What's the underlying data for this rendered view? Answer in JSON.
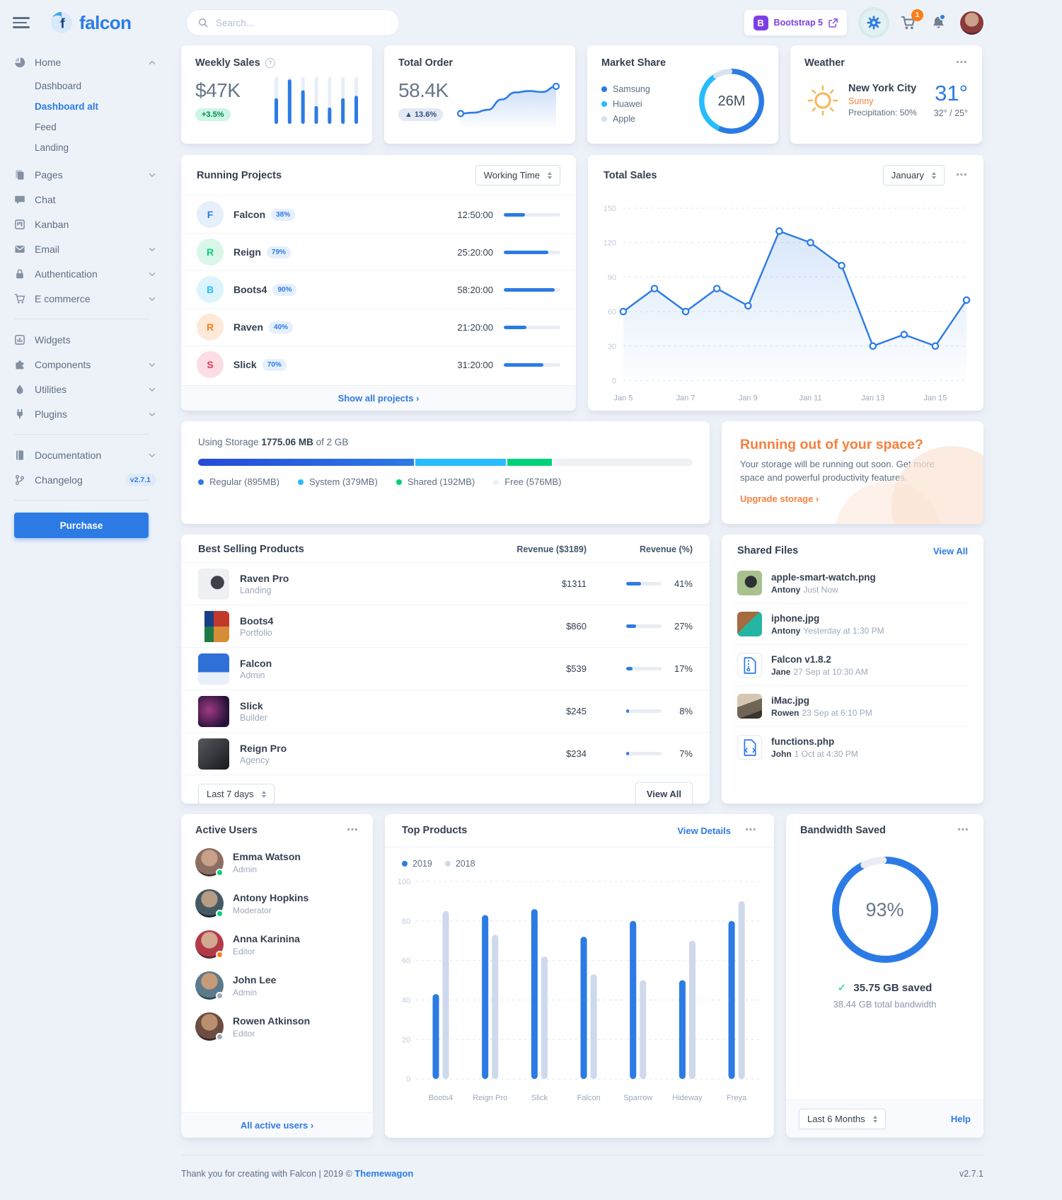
{
  "brand": "falcon",
  "icons": {
    "more": "⋯",
    "check": "✓",
    "help": "?",
    "bootstrap_initial": "B"
  },
  "navbar": {
    "search_placeholder": "Search...",
    "bootstrap_label": "Bootstrap 5",
    "cart_count": "1"
  },
  "sidebar": {
    "purchase_label": "Purchase",
    "sections": [
      {
        "items": [
          {
            "label": "Home",
            "icon": "pie",
            "caret": "up",
            "children": [
              {
                "label": "Dashboard",
                "active": false
              },
              {
                "label": "Dashboard alt",
                "active": true
              },
              {
                "label": "Feed",
                "active": false
              },
              {
                "label": "Landing",
                "active": false
              }
            ]
          },
          {
            "label": "Pages",
            "icon": "pages",
            "caret": "down"
          },
          {
            "label": "Chat",
            "icon": "chat"
          },
          {
            "label": "Kanban",
            "icon": "kanban"
          },
          {
            "label": "Email",
            "icon": "email",
            "caret": "down"
          },
          {
            "label": "Authentication",
            "icon": "lock",
            "caret": "down"
          },
          {
            "label": "E commerce",
            "icon": "cart",
            "caret": "down"
          }
        ]
      },
      {
        "items": [
          {
            "label": "Widgets",
            "icon": "widgets"
          },
          {
            "label": "Components",
            "icon": "puzzle",
            "caret": "down"
          },
          {
            "label": "Utilities",
            "icon": "drop",
            "caret": "down"
          },
          {
            "label": "Plugins",
            "icon": "plug",
            "caret": "down"
          }
        ]
      },
      {
        "items": [
          {
            "label": "Documentation",
            "icon": "book",
            "caret": "down"
          },
          {
            "label": "Changelog",
            "icon": "branch",
            "badge": "v2.7.1"
          }
        ]
      }
    ]
  },
  "cards": {
    "weekly_sales": {
      "title": "Weekly Sales",
      "value": "$47K",
      "badge": "+3.5%"
    },
    "total_order": {
      "title": "Total Order",
      "value": "58.4K",
      "badge": "▲ 13.6%"
    },
    "market_share": {
      "title": "Market Share",
      "center": "26M"
    },
    "weather": {
      "title": "Weather",
      "city": "New York City",
      "condition": "Sunny",
      "precipitation": "Precipitation: 50%",
      "temp": "31°",
      "range": "32° / 25°"
    }
  },
  "running_projects": {
    "title": "Running Projects",
    "filter": "Working Time",
    "footer": "Show all projects ›",
    "items": [
      {
        "initial": "F",
        "name": "Falcon",
        "percent": "38%",
        "time": "12:50:00",
        "progress": 38,
        "color": "#2c7be5",
        "bg": "#e6effc"
      },
      {
        "initial": "R",
        "name": "Reign",
        "percent": "79%",
        "time": "25:20:00",
        "progress": 79,
        "color": "#00d27a",
        "bg": "#d9f7e9"
      },
      {
        "initial": "B",
        "name": "Boots4",
        "percent": "90%",
        "time": "58:20:00",
        "progress": 90,
        "color": "#27bcfd",
        "bg": "#dcf4fe"
      },
      {
        "initial": "R",
        "name": "Raven",
        "percent": "40%",
        "time": "21:20:00",
        "progress": 40,
        "color": "#fd7e14",
        "bg": "#fee9d8"
      },
      {
        "initial": "S",
        "name": "Slick",
        "percent": "70%",
        "time": "31:20:00",
        "progress": 70,
        "color": "#e63757",
        "bg": "#fbdde3"
      }
    ]
  },
  "total_sales": {
    "title": "Total Sales",
    "filter": "January"
  },
  "storage": {
    "prefix": "Using Storage",
    "used": "1775.06 MB",
    "suffix": "of 2 GB",
    "segments": [
      {
        "label": "Regular (895MB)",
        "pct": 43.7,
        "color": "#2c7be5",
        "gradient": "linear-gradient(90deg,#2549d8,#2c7be5)"
      },
      {
        "label": "System (379MB)",
        "pct": 18.5,
        "color": "#27bcfd"
      },
      {
        "label": "Shared (192MB)",
        "pct": 9.4,
        "color": "#00d27a"
      },
      {
        "label": "Free (576MB)",
        "pct": 28.4,
        "color": "#eef2f6"
      }
    ]
  },
  "space": {
    "title": "Running out of your space?",
    "body": "Your storage will be running out soon. Get more space and powerful productivity features.",
    "link": "Upgrade storage ›"
  },
  "best_selling": {
    "title": "Best Selling Products",
    "col_revenue": "Revenue ($3189)",
    "col_percent": "Revenue (%)",
    "filter": "Last 7 days",
    "view_all": "View All",
    "items": [
      {
        "name": "Raven Pro",
        "category": "Landing",
        "revenue": "$1311",
        "percent": "41%",
        "pct": 41,
        "thumb": "th-raven"
      },
      {
        "name": "Boots4",
        "category": "Portfolio",
        "revenue": "$860",
        "percent": "27%",
        "pct": 27,
        "thumb": "th-boots4"
      },
      {
        "name": "Falcon",
        "category": "Admin",
        "revenue": "$539",
        "percent": "17%",
        "pct": 17,
        "thumb": "th-falcon"
      },
      {
        "name": "Slick",
        "category": "Builder",
        "revenue": "$245",
        "percent": "8%",
        "pct": 8,
        "thumb": "th-slick"
      },
      {
        "name": "Reign Pro",
        "category": "Agency",
        "revenue": "$234",
        "percent": "7%",
        "pct": 7,
        "thumb": "th-reign"
      }
    ]
  },
  "shared_files": {
    "title": "Shared Files",
    "view_all": "View All",
    "items": [
      {
        "name": "apple-smart-watch.png",
        "user": "Antony",
        "time": "Just Now",
        "thumb": "tf-watch",
        "icon": ""
      },
      {
        "name": "iphone.jpg",
        "user": "Antony",
        "time": "Yesterday at 1:30 PM",
        "thumb": "tf-iphone",
        "icon": ""
      },
      {
        "name": "Falcon v1.8.2",
        "user": "Jane",
        "time": "27 Sep at 10:30 AM",
        "thumb": "sf-file",
        "icon": "zip"
      },
      {
        "name": "iMac.jpg",
        "user": "Rowen",
        "time": "23 Sep at 6:10 PM",
        "thumb": "tf-imac",
        "icon": ""
      },
      {
        "name": "functions.php",
        "user": "John",
        "time": "1 Oct at 4:30 PM",
        "thumb": "sf-file",
        "icon": "php"
      }
    ]
  },
  "active_users": {
    "title": "Active Users",
    "footer": "All active users ›",
    "items": [
      {
        "name": "Emma Watson",
        "role": "Admin",
        "status": "#00d27a",
        "avatar": "av-g1"
      },
      {
        "name": "Antony Hopkins",
        "role": "Moderator",
        "status": "#00d27a",
        "avatar": "av-g2"
      },
      {
        "name": "Anna Karinina",
        "role": "Editor",
        "status": "#fd7e14",
        "avatar": "av-g3"
      },
      {
        "name": "John Lee",
        "role": "Admin",
        "status": "#9da9bb",
        "avatar": "av-g4"
      },
      {
        "name": "Rowen Atkinson",
        "role": "Editor",
        "status": "#9da9bb",
        "avatar": "av-g5"
      }
    ]
  },
  "top_products": {
    "title": "Top Products",
    "view_details": "View Details"
  },
  "bandwidth": {
    "title": "Bandwidth Saved",
    "saved": "35.75 GB saved",
    "total": "38.44 GB total bandwidth",
    "filter": "Last 6 Months",
    "help": "Help"
  },
  "footer": {
    "text": "Thank you for creating with Falcon | 2019 © ",
    "link": "Themewagon",
    "version": "v2.7.1"
  },
  "chart_data": [
    {
      "id": "weekly_sales_spark",
      "type": "bar",
      "title": "Weekly Sales",
      "values": [
        55,
        95,
        72,
        38,
        35,
        55,
        60
      ],
      "ylim": [
        0,
        100
      ]
    },
    {
      "id": "total_order_spark",
      "type": "line",
      "title": "Total Order",
      "values": [
        10,
        12,
        18,
        40,
        55,
        58,
        56,
        68
      ],
      "ylim": [
        0,
        80
      ]
    },
    {
      "id": "market_share_donut",
      "type": "pie",
      "title": "Market Share",
      "center_label": "26M",
      "labels": [
        "Samsung",
        "Huawei",
        "Apple"
      ],
      "values": [
        58,
        33,
        9
      ],
      "colors": [
        "#2c7be5",
        "#27bcfd",
        "#d8e2ef"
      ]
    },
    {
      "id": "total_sales_line",
      "type": "line",
      "title": "Total Sales",
      "x": [
        "Jan 5",
        "Jan 6",
        "Jan 7",
        "Jan 8",
        "Jan 9",
        "Jan 10",
        "Jan 11",
        "Jan 12",
        "Jan 13",
        "Jan 14",
        "Jan 15",
        "Jan 16"
      ],
      "xticklabels": [
        "Jan 5",
        "Jan 7",
        "Jan 9",
        "Jan 11",
        "Jan 13",
        "Jan 15"
      ],
      "values": [
        60,
        80,
        60,
        80,
        65,
        130,
        120,
        100,
        30,
        40,
        30,
        70
      ],
      "ylim": [
        0,
        150
      ],
      "yticks": [
        0,
        30,
        60,
        90,
        120,
        150
      ],
      "color": "#2c7be5",
      "grid": true,
      "legend": false
    },
    {
      "id": "top_products_bars",
      "type": "bar",
      "title": "Top Products",
      "categories": [
        "Boots4",
        "Reign Pro",
        "Slick",
        "Falcon",
        "Sparrow",
        "Hideway",
        "Freya"
      ],
      "series": [
        {
          "name": "2019",
          "color": "#2c7be5",
          "values": [
            43,
            83,
            86,
            72,
            80,
            50,
            80
          ]
        },
        {
          "name": "2018",
          "color": "#cfd9ec",
          "values": [
            85,
            73,
            62,
            53,
            50,
            70,
            90
          ]
        }
      ],
      "ylim": [
        0,
        100
      ],
      "yticks": [
        0,
        20,
        40,
        60,
        80,
        100
      ],
      "grid": true,
      "legend_position": "top-left"
    },
    {
      "id": "bandwidth_donut",
      "type": "pie",
      "title": "Bandwidth Saved",
      "center_label": "93%",
      "values": [
        93,
        7
      ],
      "colors": [
        "#2c7be5",
        "#e9edf3"
      ]
    }
  ]
}
